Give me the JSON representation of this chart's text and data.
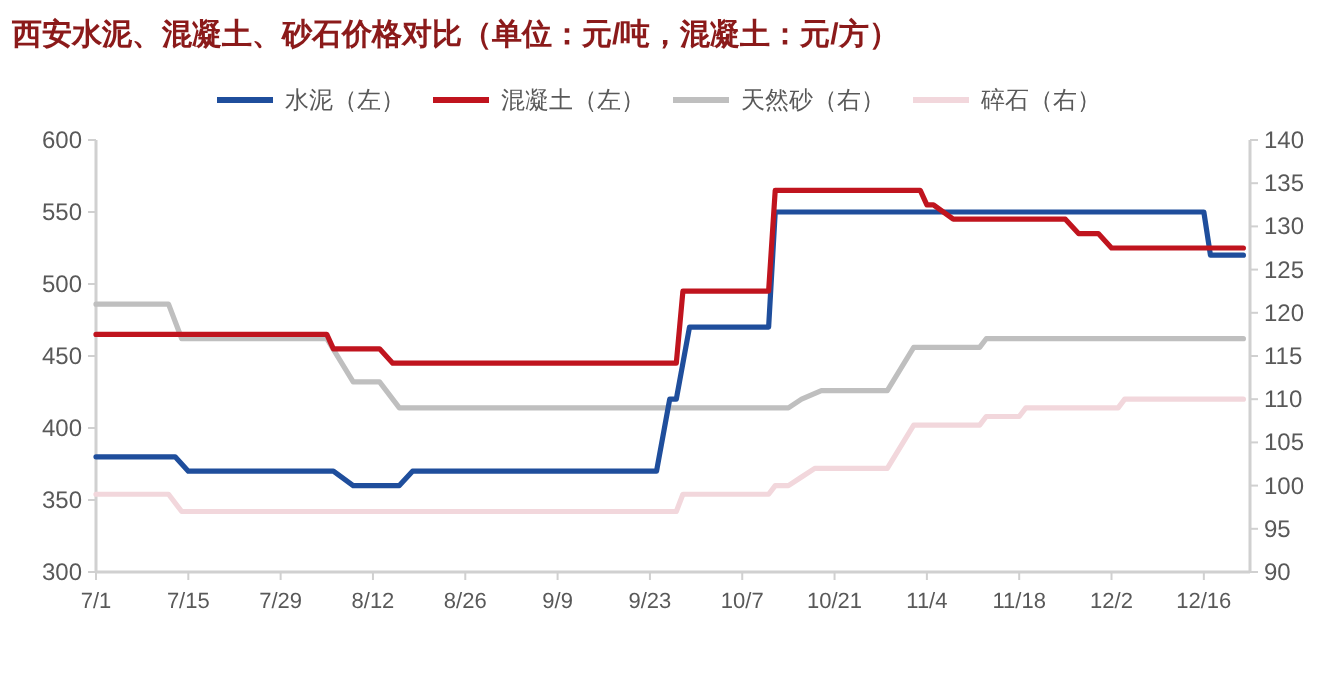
{
  "chart_data": {
    "type": "line",
    "title": "西安水泥、混凝土、砂石价格对比（单位：元/吨，混凝土：元/方）",
    "xlim": [
      "--07-01",
      "--12-23"
    ],
    "xticks": [
      {
        "value": "--07-01",
        "label": "7/1"
      },
      {
        "value": "--07-15",
        "label": "7/15"
      },
      {
        "value": "--07-29",
        "label": "7/29"
      },
      {
        "value": "--08-12",
        "label": "8/12"
      },
      {
        "value": "--08-26",
        "label": "8/26"
      },
      {
        "value": "--09-09",
        "label": "9/9"
      },
      {
        "value": "--09-23",
        "label": "9/23"
      },
      {
        "value": "--10-07",
        "label": "10/7"
      },
      {
        "value": "--10-21",
        "label": "10/21"
      },
      {
        "value": "--11-04",
        "label": "11/4"
      },
      {
        "value": "--11-18",
        "label": "11/18"
      },
      {
        "value": "--12-02",
        "label": "12/2"
      },
      {
        "value": "--12-16",
        "label": "12/16"
      }
    ],
    "ylim": [
      300,
      600
    ],
    "yticks": [
      300,
      350,
      400,
      450,
      500,
      550,
      600
    ],
    "y2lim": [
      90,
      140
    ],
    "y2ticks": [
      90,
      95,
      100,
      105,
      110,
      115,
      120,
      125,
      130,
      135,
      140
    ],
    "grid": false,
    "legend": "top",
    "line_style": "solid",
    "marker": "none",
    "series": [
      {
        "name": "水泥（左）",
        "color": "#1f4e9c",
        "x": [
          "--07-01",
          "--07-13",
          "--07-15",
          "--08-06",
          "--08-09",
          "--08-16",
          "--08-18",
          "--09-24",
          "--09-26",
          "--09-27",
          "--09-29",
          "--10-11",
          "--10-12",
          "--12-16",
          "--12-17",
          "--12-22"
        ],
        "values": [
          380,
          380,
          370,
          370,
          360,
          360,
          370,
          370,
          420,
          420,
          470,
          470,
          550,
          550,
          520,
          520
        ]
      },
      {
        "name": "混凝土（左）",
        "color": "#c0141e",
        "x": [
          "--07-01",
          "--08-05",
          "--08-06",
          "--08-13",
          "--08-15",
          "--09-27",
          "--09-28",
          "--10-11",
          "--10-12",
          "--11-03",
          "--11-04",
          "--11-05",
          "--11-08",
          "--11-25",
          "--11-27",
          "--11-30",
          "--12-02",
          "--12-22"
        ],
        "values": [
          465,
          465,
          455,
          455,
          445,
          445,
          495,
          495,
          565,
          565,
          555,
          555,
          545,
          545,
          535,
          535,
          525,
          525
        ]
      },
      {
        "name": "天然砂（右）",
        "color": "#bfbfbf",
        "axis": "y2",
        "x": [
          "--07-01",
          "--07-12",
          "--07-14",
          "--08-05",
          "--08-09",
          "--08-13",
          "--08-16",
          "--10-14",
          "--10-16",
          "--10-19",
          "--10-29",
          "--11-02",
          "--11-12",
          "--11-13",
          "--12-22"
        ],
        "values": [
          121,
          121,
          117,
          117,
          112,
          112,
          109,
          109,
          110,
          111,
          111,
          116,
          116,
          117,
          117
        ]
      },
      {
        "name": "碎石（右）",
        "color": "#f2d7dc",
        "axis": "y2",
        "x": [
          "--07-01",
          "--07-12",
          "--07-14",
          "--09-27",
          "--09-28",
          "--10-11",
          "--10-12",
          "--10-14",
          "--10-16",
          "--10-18",
          "--10-29",
          "--11-02",
          "--11-12",
          "--11-13",
          "--11-18",
          "--11-19",
          "--12-03",
          "--12-04",
          "--12-22"
        ],
        "values": [
          99,
          99,
          97,
          97,
          99,
          99,
          100,
          100,
          101,
          102,
          102,
          107,
          107,
          108,
          108,
          109,
          109,
          110,
          110
        ]
      }
    ]
  }
}
